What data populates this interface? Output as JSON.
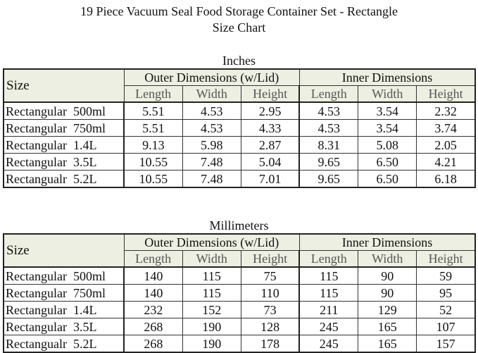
{
  "title": "19 Piece Vacuum Seal Food Storage Container Set - Rectangle",
  "subtitle": "Size Chart",
  "tables": [
    {
      "caption": "Inches",
      "size_header": "Size",
      "outer_header": "Outer Dimensions (w/Lid)",
      "inner_header": "Inner Dimensions",
      "columns": [
        "Length",
        "Width",
        "Height",
        "Length",
        "Width",
        "Height"
      ],
      "rows": [
        [
          "Rectangular  500ml",
          "5.51",
          "4.53",
          "2.95",
          "4.53",
          "3.54",
          "2.32"
        ],
        [
          "Rectangular  750ml",
          "5.51",
          "4.53",
          "4.33",
          "4.53",
          "3.54",
          "3.74"
        ],
        [
          "Rectangular  1.4L",
          "9.13",
          "5.98",
          "2.87",
          "8.31",
          "5.08",
          "2.05"
        ],
        [
          "Rectangular  3.5L",
          "10.55",
          "7.48",
          "5.04",
          "9.65",
          "6.50",
          "4.21"
        ],
        [
          "Rectangualr  5.2L",
          "10.55",
          "7.48",
          "7.01",
          "9.65",
          "6.50",
          "6.18"
        ]
      ]
    },
    {
      "caption": "Millimeters",
      "size_header": "Size",
      "outer_header": "Outer Dimensions (w/Lid)",
      "inner_header": "Inner Dimensions",
      "columns": [
        "Length",
        "Width",
        "Height",
        "Length",
        "Width",
        "Height"
      ],
      "rows": [
        [
          "Rectangular  500ml",
          "140",
          "115",
          "75",
          "115",
          "90",
          "59"
        ],
        [
          "Rectangular  750ml",
          "140",
          "115",
          "110",
          "115",
          "90",
          "95"
        ],
        [
          "Rectangular  1.4L",
          "232",
          "152",
          "73",
          "211",
          "129",
          "52"
        ],
        [
          "Rectangular  3.5L",
          "268",
          "190",
          "128",
          "245",
          "165",
          "107"
        ],
        [
          "Rectangualr  5.2L",
          "268",
          "190",
          "178",
          "245",
          "165",
          "157"
        ]
      ]
    }
  ]
}
